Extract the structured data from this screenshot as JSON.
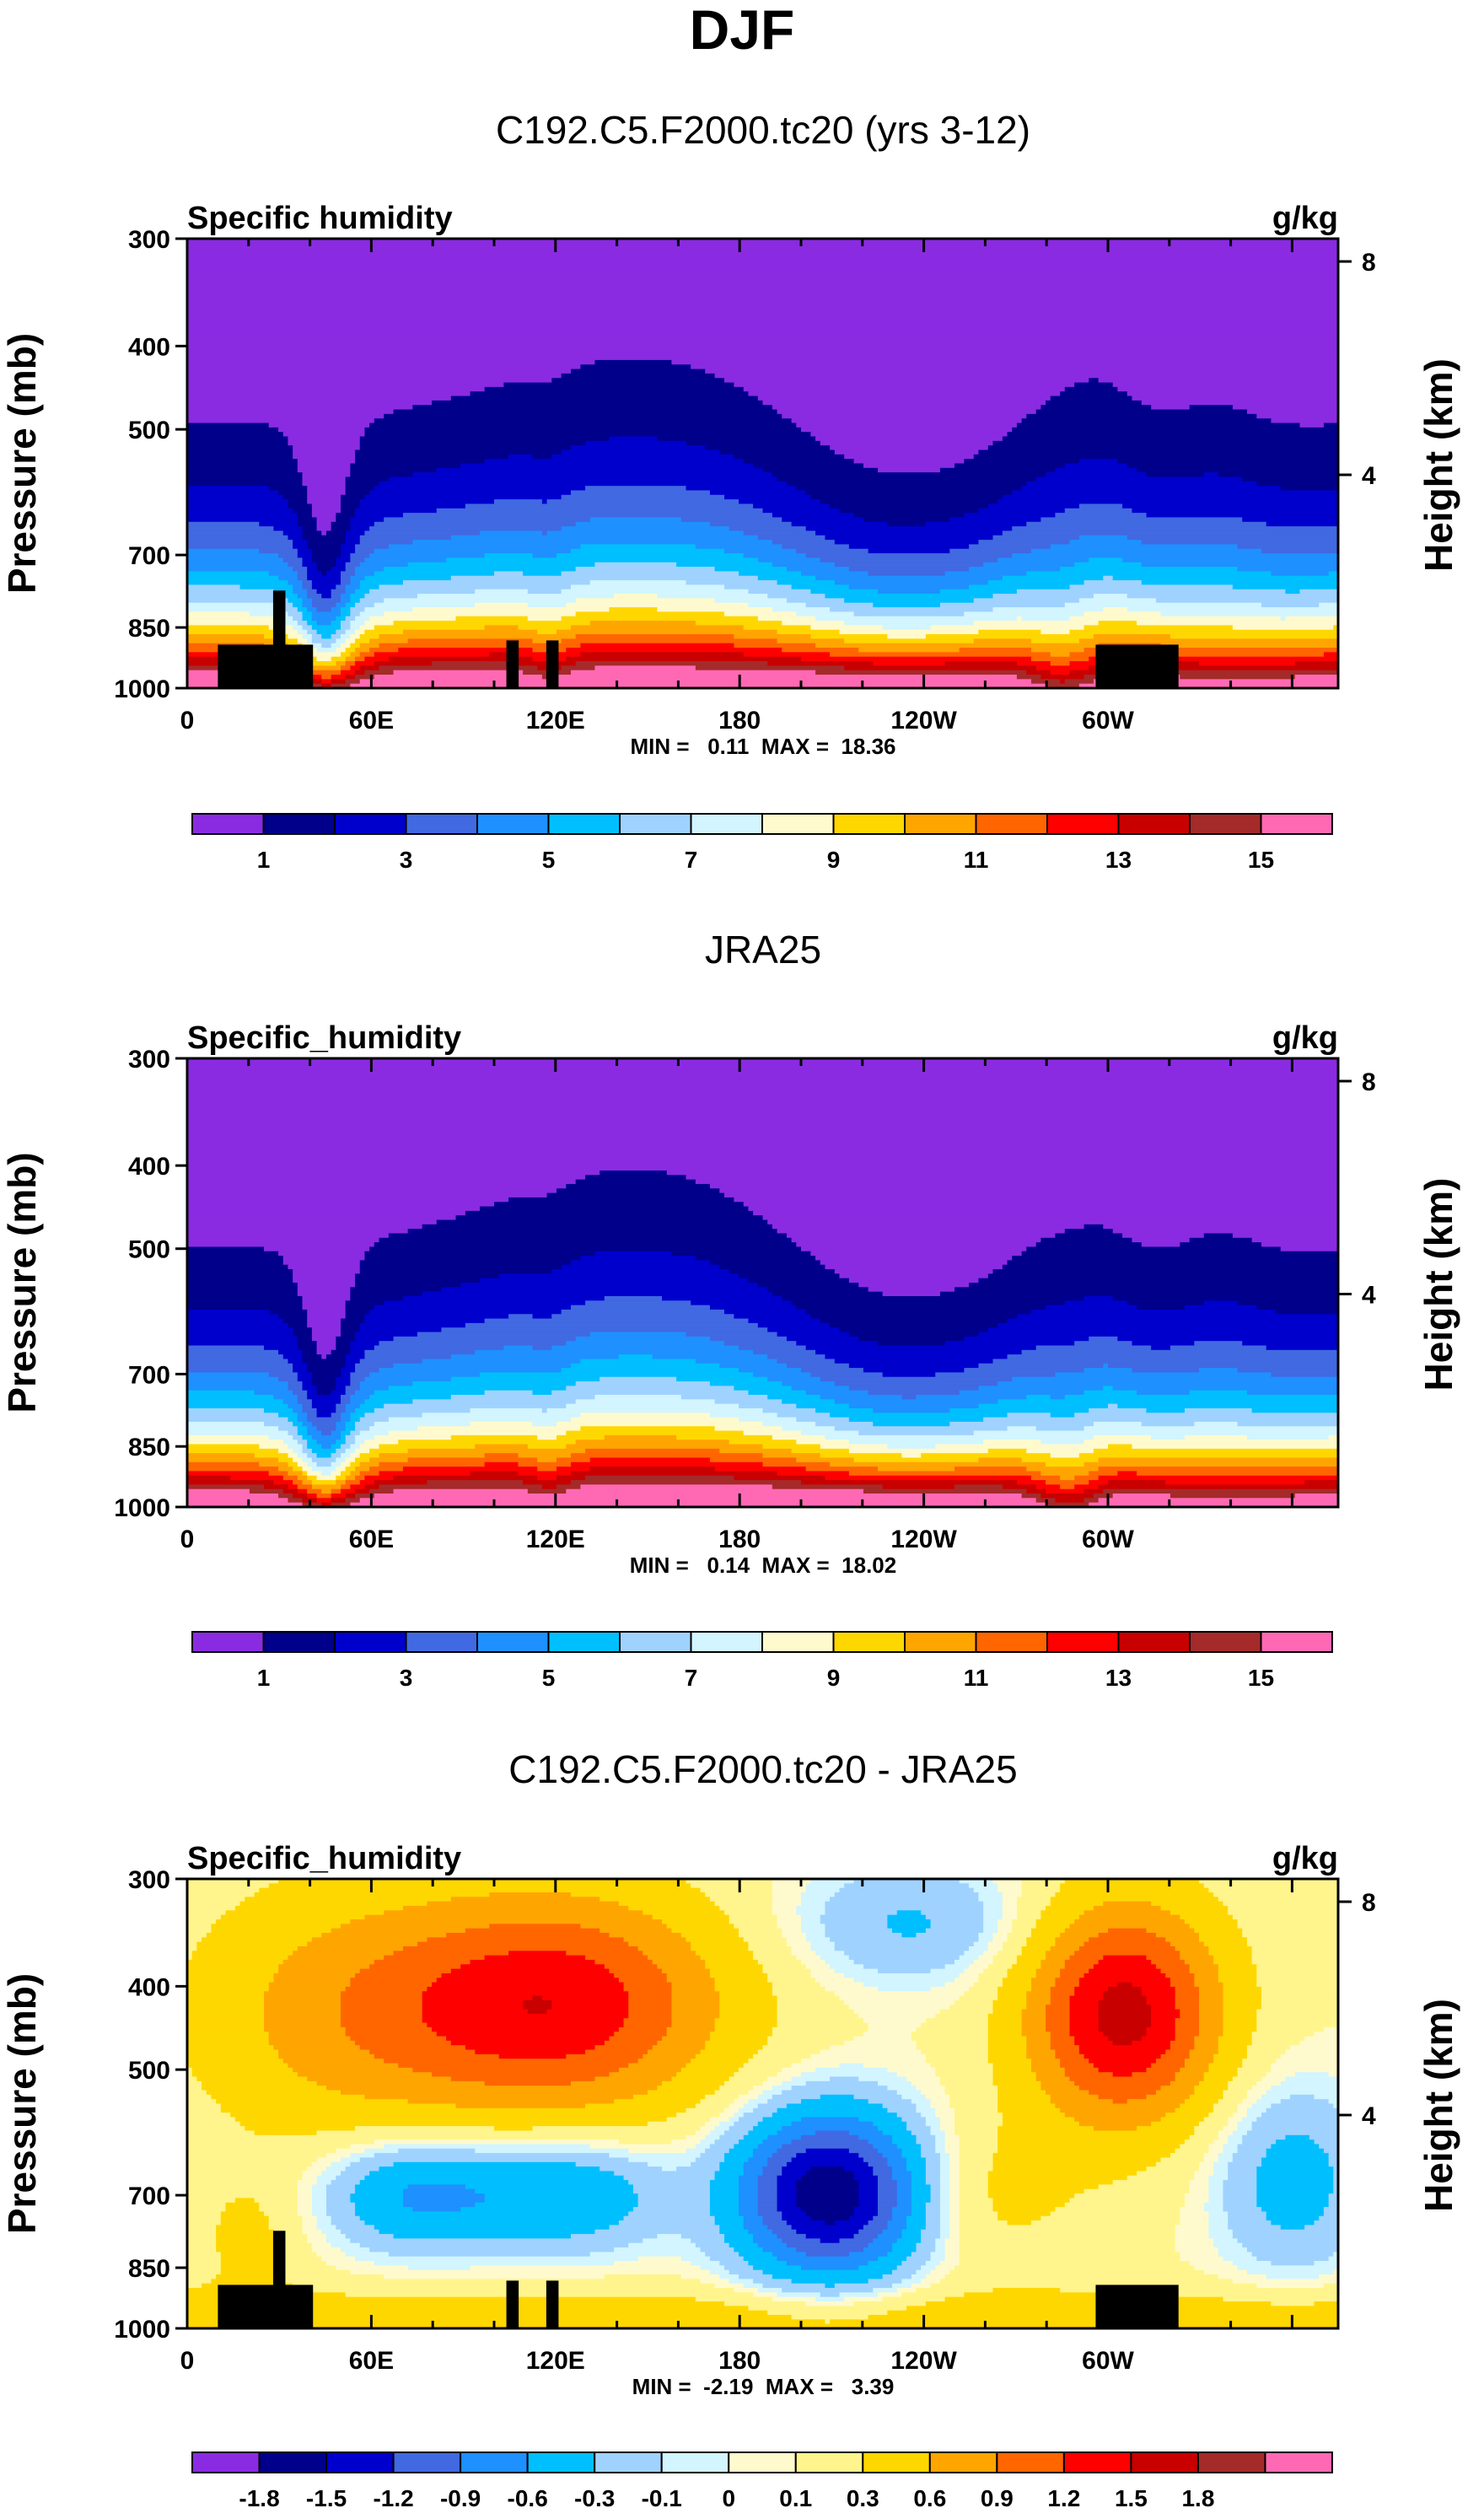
{
  "figure": {
    "title": "DJF"
  },
  "colors": {
    "abs_palette": [
      "#8a2be2",
      "#00008b",
      "#0000cd",
      "#4169e1",
      "#1e90ff",
      "#00bfff",
      "#a0d2ff",
      "#d2f5ff",
      "#fffacd",
      "#ffd700",
      "#ffa500",
      "#ff6600",
      "#ff0000",
      "#c80000",
      "#a52a2a",
      "#ff69b4"
    ],
    "diff_palette": [
      "#8a2be2",
      "#00008b",
      "#0000cd",
      "#4169e1",
      "#1e90ff",
      "#00bfff",
      "#a0d2ff",
      "#d2f5ff",
      "#fffacd",
      "#fff58c",
      "#ffd700",
      "#ffa500",
      "#ff6600",
      "#ff0000",
      "#c80000",
      "#a52a2a",
      "#ff69b4"
    ],
    "terrain": "#000000"
  },
  "chart_data": [
    {
      "type": "heatmap",
      "title": "C192.C5.F2000.tc20 (yrs 3-12)",
      "left_string": "Specific humidity",
      "right_string": "g/kg",
      "ylabel": "Pressure (mb)",
      "ylabel_right": "Height (km)",
      "y_ticks": [
        "300",
        "400",
        "500",
        "700",
        "850",
        "1000"
      ],
      "y_tick_values": [
        300,
        400,
        500,
        700,
        850,
        1000
      ],
      "y_right_ticks": [
        "8",
        "4"
      ],
      "y_right_values": [
        8,
        4
      ],
      "x_ticks": [
        "0",
        "60E",
        "120E",
        "180",
        "120W",
        "60W"
      ],
      "x_tick_values": [
        0,
        60,
        120,
        180,
        240,
        300
      ],
      "xlim": [
        0,
        375
      ],
      "ylim": [
        1000,
        300
      ],
      "min_label": "MIN =   0.11  MAX =  18.36",
      "stats": {
        "min": 0.11,
        "max": 18.36
      },
      "levels": [
        1,
        2,
        3,
        4,
        5,
        6,
        7,
        8,
        9,
        10,
        11,
        12,
        13,
        14,
        15
      ],
      "colorbar_labels": [
        "1",
        "3",
        "5",
        "7",
        "9",
        "11",
        "13",
        "15"
      ],
      "colorbar_label_values": [
        1,
        3,
        5,
        7,
        9,
        11,
        13,
        15
      ],
      "field": "model_abs"
    },
    {
      "type": "heatmap",
      "title": "JRA25",
      "left_string": "Specific_humidity",
      "right_string": "g/kg",
      "ylabel": "Pressure (mb)",
      "ylabel_right": "Height (km)",
      "y_ticks": [
        "300",
        "400",
        "500",
        "700",
        "850",
        "1000"
      ],
      "y_tick_values": [
        300,
        400,
        500,
        700,
        850,
        1000
      ],
      "y_right_ticks": [
        "8",
        "4"
      ],
      "y_right_values": [
        8,
        4
      ],
      "x_ticks": [
        "0",
        "60E",
        "120E",
        "180",
        "120W",
        "60W"
      ],
      "x_tick_values": [
        0,
        60,
        120,
        180,
        240,
        300
      ],
      "xlim": [
        0,
        375
      ],
      "ylim": [
        1000,
        300
      ],
      "min_label": "MIN =   0.14  MAX =  18.02",
      "stats": {
        "min": 0.14,
        "max": 18.02
      },
      "levels": [
        1,
        2,
        3,
        4,
        5,
        6,
        7,
        8,
        9,
        10,
        11,
        12,
        13,
        14,
        15
      ],
      "colorbar_labels": [
        "1",
        "3",
        "5",
        "7",
        "9",
        "11",
        "13",
        "15"
      ],
      "colorbar_label_values": [
        1,
        3,
        5,
        7,
        9,
        11,
        13,
        15
      ],
      "field": "obs_abs"
    },
    {
      "type": "heatmap",
      "title": "C192.C5.F2000.tc20 - JRA25",
      "left_string": "Specific_humidity",
      "right_string": "g/kg",
      "ylabel": "Pressure (mb)",
      "ylabel_right": "Height (km)",
      "y_ticks": [
        "300",
        "400",
        "500",
        "700",
        "850",
        "1000"
      ],
      "y_tick_values": [
        300,
        400,
        500,
        700,
        850,
        1000
      ],
      "y_right_ticks": [
        "8",
        "4"
      ],
      "y_right_values": [
        8,
        4
      ],
      "x_ticks": [
        "0",
        "60E",
        "120E",
        "180",
        "120W",
        "60W"
      ],
      "x_tick_values": [
        0,
        60,
        120,
        180,
        240,
        300
      ],
      "xlim": [
        0,
        375
      ],
      "ylim": [
        1000,
        300
      ],
      "min_label": "MIN =  -2.19  MAX =   3.39",
      "stats": {
        "min": -2.19,
        "max": 3.39
      },
      "levels": [
        -1.8,
        -1.5,
        -1.2,
        -0.9,
        -0.6,
        -0.3,
        -0.1,
        0,
        0.1,
        0.3,
        0.6,
        0.9,
        1.2,
        1.5,
        1.8
      ],
      "colorbar_labels": [
        "-1.8",
        "-1.5",
        "-1.2",
        "-0.9",
        "-0.6",
        "-0.3",
        "-0.1",
        "0",
        "0.1",
        "0.3",
        "0.6",
        "0.9",
        "1.2",
        "1.5",
        "1.8"
      ],
      "colorbar_label_values": [
        -1.8,
        -1.5,
        -1.2,
        -0.9,
        -0.6,
        -0.3,
        -0.1,
        0,
        0.1,
        0.3,
        0.6,
        0.9,
        1.2,
        1.5,
        1.8
      ],
      "field": "difference"
    }
  ]
}
